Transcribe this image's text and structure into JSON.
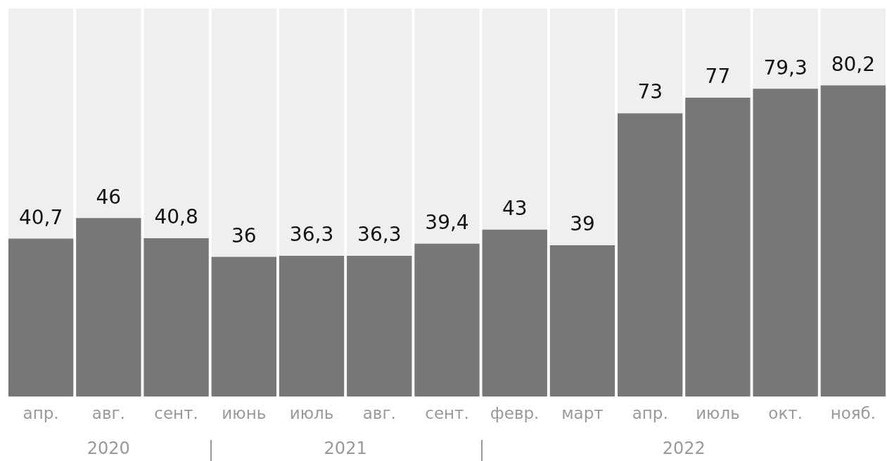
{
  "chart_data": {
    "type": "bar",
    "stacked": true,
    "tick_labels": "x",
    "grid": false,
    "legend": false,
    "categories": [
      "апр.",
      "авг.",
      "сент.",
      "июнь",
      "июль",
      "авг.",
      "сент.",
      "февр.",
      "март",
      "апр.",
      "июль",
      "окт.",
      "нояб."
    ],
    "ylim": [
      0,
      100
    ],
    "series": [
      {
        "color": "#777777",
        "values": [
          40.7,
          46,
          40.8,
          36,
          36.3,
          36.3,
          39.4,
          43,
          39,
          73,
          77,
          79.3,
          80.2
        ],
        "value_labels": [
          "40,7",
          "46",
          "40,8",
          "36",
          "36,3",
          "36,3",
          "39,4",
          "43",
          "39",
          "73",
          "77",
          "79,3",
          "80,2"
        ]
      },
      {
        "color": "#efefef",
        "values": [
          59.3,
          54,
          59.2,
          64,
          63.7,
          63.7,
          60.6,
          57,
          61,
          27,
          23,
          20.7,
          19.8
        ]
      }
    ],
    "annotations": [
      "2020",
      "2021",
      "2022"
    ]
  }
}
